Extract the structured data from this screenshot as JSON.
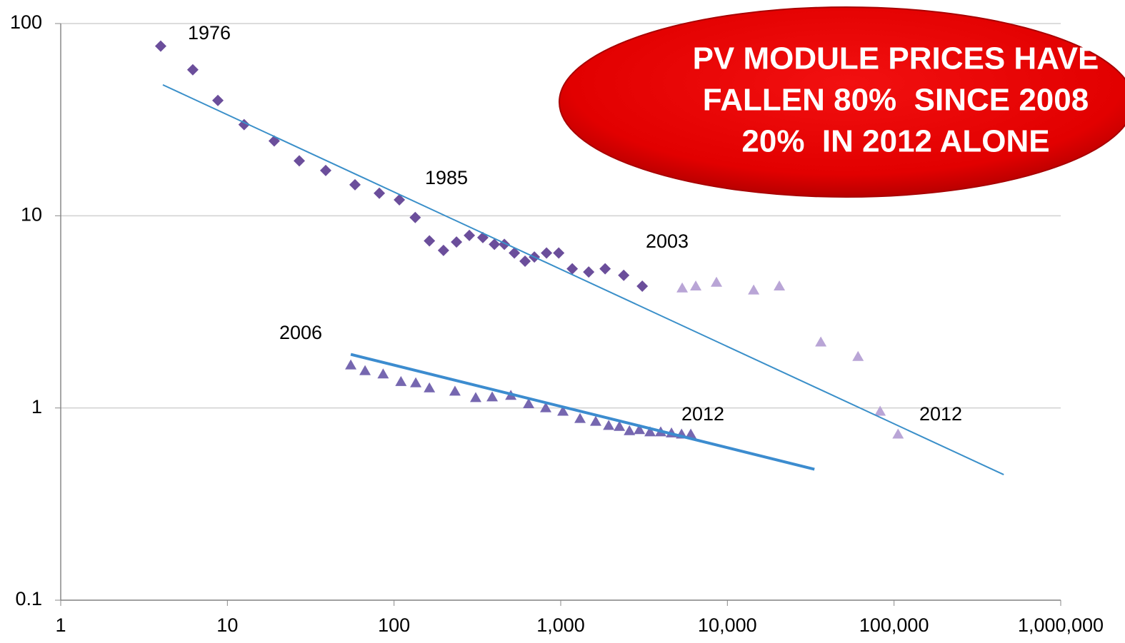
{
  "chart_data": {
    "type": "scatter",
    "xscale": "log",
    "yscale": "log",
    "xlim": [
      1,
      1000000
    ],
    "ylim": [
      0.1,
      100
    ],
    "xticks": [
      1,
      10,
      100,
      {
        "value": 1000,
        "label": "1,000"
      },
      {
        "value": 10000,
        "label": "10,000"
      },
      {
        "value": 100000,
        "label": "100,000"
      },
      {
        "value": 1000000,
        "label": "1,000,000"
      }
    ],
    "yticks": [
      0.1,
      1,
      10,
      100
    ],
    "grid": true,
    "series": [
      {
        "type": "scatter",
        "marker": "diamond",
        "color": "#6b4e9b",
        "x": [
          3.98,
          6.2,
          8.77,
          12.6,
          19.1,
          27,
          38.9,
          58.3,
          81.6,
          107.6,
          134,
          163,
          198,
          237,
          283,
          341,
          400,
          459,
          527,
          611,
          695,
          822,
          973,
          1173,
          1472,
          1847,
          2388,
          3086
        ],
        "values": [
          76.3,
          57.5,
          39.8,
          29.8,
          24.5,
          19.3,
          17.2,
          14.5,
          13.1,
          12.1,
          9.8,
          7.4,
          6.6,
          7.3,
          7.9,
          7.7,
          7.1,
          7.1,
          6.4,
          5.8,
          6.1,
          6.4,
          6.4,
          5.3,
          5.1,
          5.3,
          4.9,
          4.3
        ]
      },
      {
        "type": "scatter",
        "marker": "triangle",
        "color": "#b9a5d6",
        "x": [
          5358,
          6460,
          8600,
          14380,
          20500,
          36360,
          60800,
          82500,
          105700
        ],
        "values": [
          4.2,
          4.3,
          4.5,
          4.1,
          4.3,
          2.2,
          1.85,
          0.96,
          0.73
        ]
      },
      {
        "type": "scatter",
        "marker": "triangle",
        "color": "#7667b0",
        "x": [
          55,
          67,
          86,
          110,
          135,
          163,
          232,
          309,
          388,
          502,
          642,
          813,
          1031,
          1306,
          1622,
          1940,
          2250,
          2584,
          2965,
          3435,
          3981,
          4620,
          5310,
          6030
        ],
        "values": [
          1.67,
          1.56,
          1.5,
          1.37,
          1.35,
          1.27,
          1.22,
          1.13,
          1.14,
          1.16,
          1.05,
          1.0,
          0.96,
          0.88,
          0.85,
          0.81,
          0.8,
          0.76,
          0.77,
          0.75,
          0.75,
          0.74,
          0.73,
          0.73
        ]
      },
      {
        "type": "line",
        "color": "#3a8fc9",
        "width": 2,
        "x": [
          4.1,
          455000
        ],
        "values": [
          48,
          0.45
        ]
      },
      {
        "type": "line",
        "color": "#3c8ccf",
        "width": 4,
        "x": [
          55,
          33300
        ],
        "values": [
          1.9,
          0.48
        ]
      }
    ],
    "annotations": [
      "1976",
      "1985",
      "2003",
      "2006",
      "2012",
      "2012"
    ],
    "callout": [
      "PV MODULE PRICES HAVE",
      "FALLEN 80%  SINCE 2008",
      "20%  IN 2012 ALONE"
    ]
  }
}
